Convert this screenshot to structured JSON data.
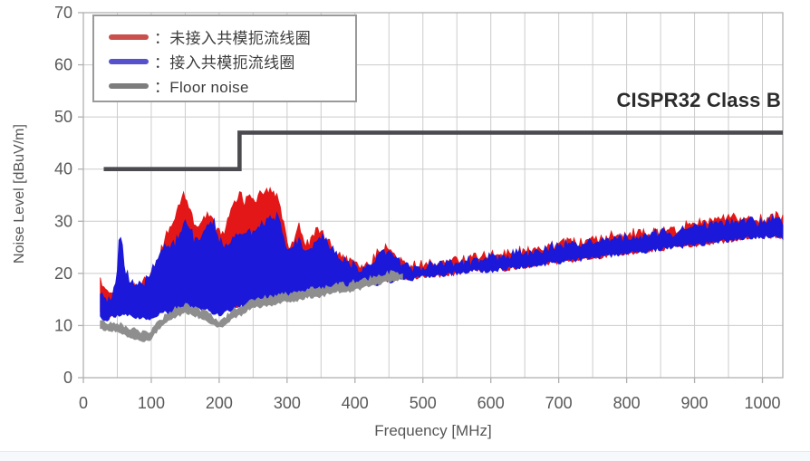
{
  "chart_data": {
    "type": "line",
    "subtype": "noisy-envelope-bands",
    "title": "",
    "xlabel": "Frequency [MHz]",
    "ylabel": "Noise Level [dBuV/m]",
    "xlim": [
      0,
      1030
    ],
    "ylim": [
      0,
      70
    ],
    "x_ticks": [
      0,
      100,
      200,
      300,
      400,
      500,
      600,
      700,
      800,
      900,
      1000
    ],
    "x_tick_labels": [
      "0",
      "100",
      "200",
      "300",
      "400",
      "500",
      "600",
      "700",
      "800",
      "900",
      "1000"
    ],
    "y_ticks": [
      0,
      10,
      20,
      30,
      40,
      50,
      60,
      70
    ],
    "y_tick_labels": [
      "0",
      "10",
      "20",
      "30",
      "40",
      "50",
      "60",
      "70"
    ],
    "x_minor_grid_step": 50,
    "y_major_grid_step": 10,
    "grid": true,
    "legend_position": "top-left",
    "annotation": "CISPR32 Class B",
    "colors": {
      "red_trace": "#e31717",
      "blue_trace": "#1c18d9",
      "gray_trace": "#8e8e8e",
      "limit_line": "#4b4b4f",
      "grid_line": "#cccccc",
      "plot_border": "#b0b0b0",
      "tick_text": "#595959",
      "annotation_text": "#2b2b2b"
    },
    "legend": [
      {
        "label": "：未接入共模扼流线圈",
        "swatch_color": "#c9504d"
      },
      {
        "label": "：接入共模扼流线圈",
        "swatch_color": "#5552cc"
      },
      {
        "label": "：Floor noise",
        "swatch_color": "#7d7d7d"
      }
    ],
    "limit": {
      "name": "CISPR32 Class B",
      "color": "#4b4b4f",
      "points_mhz_dbuvm": [
        [
          30,
          40
        ],
        [
          230,
          40
        ],
        [
          230,
          47
        ],
        [
          1030,
          47
        ]
      ]
    },
    "series": [
      {
        "name": "未接入共模扼流线圈",
        "color": "#e31717",
        "band_points_f_max_min": [
          [
            25,
            19,
            12.5
          ],
          [
            32,
            16.5,
            12
          ],
          [
            40,
            15.5,
            12
          ],
          [
            48,
            16,
            12.5
          ],
          [
            55,
            20,
            12.5
          ],
          [
            62,
            18.5,
            13
          ],
          [
            72,
            17.5,
            12.5
          ],
          [
            82,
            18,
            12
          ],
          [
            92,
            19,
            12
          ],
          [
            102,
            20.5,
            12.5
          ],
          [
            112,
            23,
            13
          ],
          [
            122,
            27.5,
            13
          ],
          [
            132,
            29.5,
            13.5
          ],
          [
            140,
            32.5,
            13.5
          ],
          [
            148,
            36,
            14
          ],
          [
            156,
            33,
            14
          ],
          [
            163,
            29.5,
            14
          ],
          [
            172,
            29,
            13.5
          ],
          [
            182,
            31.5,
            13.5
          ],
          [
            192,
            29.5,
            13
          ],
          [
            202,
            27,
            12.5
          ],
          [
            212,
            30,
            13
          ],
          [
            222,
            33,
            13.5
          ],
          [
            230,
            34.5,
            14
          ],
          [
            238,
            34,
            14
          ],
          [
            246,
            35,
            14.5
          ],
          [
            254,
            33.5,
            14.5
          ],
          [
            262,
            35,
            15
          ],
          [
            270,
            36,
            15
          ],
          [
            278,
            35.5,
            15
          ],
          [
            286,
            35,
            15.5
          ],
          [
            293,
            31,
            15.5
          ],
          [
            300,
            26,
            15.5
          ],
          [
            308,
            25,
            16
          ],
          [
            318,
            29.5,
            16
          ],
          [
            326,
            25,
            16
          ],
          [
            334,
            26.5,
            16.5
          ],
          [
            344,
            28.5,
            16.5
          ],
          [
            352,
            27.5,
            17
          ],
          [
            362,
            25.5,
            17
          ],
          [
            372,
            24,
            17
          ],
          [
            382,
            23,
            17.5
          ],
          [
            392,
            22.5,
            17.5
          ],
          [
            402,
            22,
            17.5
          ],
          [
            412,
            21.5,
            18
          ],
          [
            422,
            22,
            18
          ],
          [
            432,
            24,
            18
          ],
          [
            442,
            25,
            18.5
          ],
          [
            452,
            24.5,
            18.5
          ],
          [
            462,
            23,
            19
          ],
          [
            472,
            22,
            19
          ],
          [
            485,
            21.5,
            19
          ],
          [
            500,
            21.5,
            19.5
          ],
          [
            520,
            21.5,
            19.5
          ],
          [
            545,
            22.5,
            20
          ],
          [
            570,
            23,
            20.5
          ],
          [
            600,
            23.5,
            20.5
          ],
          [
            630,
            24,
            21
          ],
          [
            660,
            24.5,
            21.5
          ],
          [
            690,
            25.5,
            22
          ],
          [
            720,
            26,
            22.5
          ],
          [
            750,
            26.5,
            23
          ],
          [
            780,
            27,
            23.5
          ],
          [
            810,
            27.5,
            24
          ],
          [
            840,
            28,
            24.5
          ],
          [
            870,
            28.5,
            25
          ],
          [
            900,
            29.5,
            25.5
          ],
          [
            930,
            30,
            26
          ],
          [
            960,
            30.5,
            26.5
          ],
          [
            990,
            30.5,
            27
          ],
          [
            1015,
            31,
            27
          ],
          [
            1030,
            30.5,
            27
          ]
        ],
        "jitter_top_db": 1.6,
        "jitter_bottom_db": 0.9
      },
      {
        "name": "接入共模扼流线圈",
        "color": "#1c18d9",
        "band_points_f_max_min": [
          [
            25,
            17,
            11.5
          ],
          [
            32,
            14.5,
            11
          ],
          [
            40,
            14.5,
            11.5
          ],
          [
            48,
            18,
            12
          ],
          [
            54,
            28.5,
            12
          ],
          [
            60,
            22,
            12.5
          ],
          [
            68,
            18.5,
            12
          ],
          [
            78,
            17.5,
            11.5
          ],
          [
            88,
            18,
            11.5
          ],
          [
            98,
            19.5,
            11.5
          ],
          [
            108,
            22,
            12
          ],
          [
            118,
            25.5,
            12.5
          ],
          [
            128,
            25,
            12.5
          ],
          [
            136,
            26,
            13
          ],
          [
            144,
            28,
            13
          ],
          [
            151,
            30.5,
            13.5
          ],
          [
            158,
            28,
            13.5
          ],
          [
            166,
            26,
            13.5
          ],
          [
            175,
            27,
            13
          ],
          [
            184,
            29.5,
            13
          ],
          [
            192,
            30,
            12.5
          ],
          [
            200,
            26.5,
            12
          ],
          [
            208,
            25,
            12.5
          ],
          [
            217,
            26,
            13
          ],
          [
            226,
            27,
            13.5
          ],
          [
            235,
            28,
            14
          ],
          [
            244,
            27.5,
            14
          ],
          [
            253,
            28,
            14.5
          ],
          [
            262,
            29.5,
            14.5
          ],
          [
            270,
            30.5,
            15
          ],
          [
            278,
            31,
            15
          ],
          [
            286,
            30.5,
            15.5
          ],
          [
            293,
            28,
            15.5
          ],
          [
            300,
            25,
            15.5
          ],
          [
            308,
            24.5,
            16
          ],
          [
            318,
            27,
            16
          ],
          [
            326,
            24,
            16
          ],
          [
            334,
            25.5,
            16.5
          ],
          [
            344,
            26,
            16.5
          ],
          [
            352,
            27,
            17
          ],
          [
            362,
            25,
            17
          ],
          [
            372,
            23.5,
            17
          ],
          [
            382,
            22.5,
            17.5
          ],
          [
            392,
            22,
            17.5
          ],
          [
            402,
            21.5,
            17.5
          ],
          [
            412,
            21,
            18
          ],
          [
            422,
            21.5,
            18
          ],
          [
            432,
            23.5,
            18
          ],
          [
            442,
            24.5,
            18.5
          ],
          [
            452,
            24,
            18.5
          ],
          [
            462,
            22.5,
            19
          ],
          [
            472,
            21.5,
            19
          ],
          [
            485,
            21,
            19
          ],
          [
            500,
            21,
            19.5
          ],
          [
            520,
            21.5,
            19.5
          ],
          [
            545,
            22,
            20
          ],
          [
            570,
            22.5,
            20.5
          ],
          [
            600,
            23,
            20.5
          ],
          [
            630,
            23.5,
            21
          ],
          [
            660,
            24,
            21.5
          ],
          [
            690,
            25,
            22
          ],
          [
            720,
            25.5,
            22.5
          ],
          [
            750,
            26,
            23
          ],
          [
            780,
            26.5,
            23.5
          ],
          [
            810,
            27,
            24
          ],
          [
            840,
            27.5,
            24.5
          ],
          [
            870,
            28,
            25
          ],
          [
            900,
            29,
            25.5
          ],
          [
            930,
            29.5,
            26
          ],
          [
            960,
            30,
            26.5
          ],
          [
            990,
            30,
            27
          ],
          [
            1015,
            30.5,
            27
          ],
          [
            1030,
            30,
            27
          ]
        ],
        "jitter_top_db": 1.5,
        "jitter_bottom_db": 0.9
      },
      {
        "name": "Floor noise",
        "color": "#8e8e8e",
        "band_points_f_max_min": [
          [
            25,
            11,
            9.5
          ],
          [
            35,
            10.5,
            9
          ],
          [
            45,
            10.5,
            9
          ],
          [
            55,
            10,
            8.5
          ],
          [
            65,
            9.5,
            8
          ],
          [
            75,
            9,
            7.5
          ],
          [
            85,
            8.5,
            7
          ],
          [
            95,
            8.5,
            7
          ],
          [
            103,
            9.5,
            8
          ],
          [
            112,
            11,
            9.5
          ],
          [
            122,
            12,
            10.5
          ],
          [
            132,
            13,
            11.5
          ],
          [
            142,
            13.5,
            12
          ],
          [
            152,
            14,
            12.5
          ],
          [
            162,
            13.5,
            12
          ],
          [
            172,
            13,
            11.5
          ],
          [
            182,
            12.5,
            11
          ],
          [
            192,
            11.5,
            10
          ],
          [
            202,
            11,
            9.5
          ],
          [
            212,
            12,
            10.5
          ],
          [
            222,
            13,
            11.5
          ],
          [
            232,
            13.5,
            12
          ],
          [
            242,
            14.5,
            13
          ],
          [
            252,
            15,
            13.5
          ],
          [
            262,
            15,
            13.5
          ],
          [
            272,
            15.5,
            14
          ],
          [
            282,
            15.5,
            14
          ],
          [
            292,
            16,
            14.5
          ],
          [
            305,
            16,
            14.5
          ],
          [
            318,
            16.5,
            15
          ],
          [
            332,
            17,
            15.5
          ],
          [
            346,
            17,
            15.5
          ],
          [
            360,
            17.5,
            16
          ],
          [
            375,
            18,
            16.5
          ],
          [
            390,
            18,
            16.5
          ],
          [
            405,
            18.5,
            17
          ],
          [
            420,
            19,
            17.5
          ],
          [
            435,
            19.5,
            18
          ],
          [
            450,
            20,
            18.5
          ],
          [
            462,
            20,
            18.5
          ],
          [
            470,
            20,
            19
          ]
        ],
        "jitter_top_db": 0.8,
        "jitter_bottom_db": 0.6
      }
    ]
  }
}
